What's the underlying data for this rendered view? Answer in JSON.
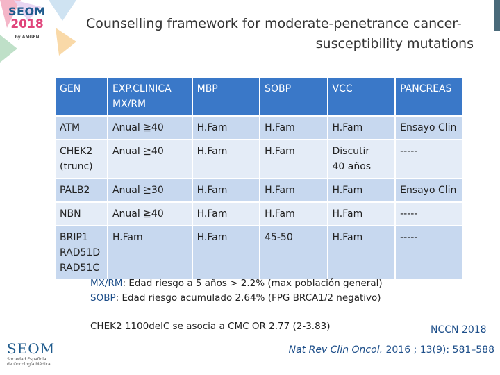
{
  "logo_top": {
    "line1": "SEOM",
    "line2": "2018",
    "line3": "by AMGEN"
  },
  "title": {
    "line1": "Counselling framework for moderate-penetrance cancer-",
    "line2": "susceptibility mutations"
  },
  "table": {
    "header": [
      "GEN",
      "EXP.CLINICA\nMX/RM",
      "MBP",
      "SOBP",
      "VCC",
      "PANCREAS"
    ],
    "rows": [
      [
        "ATM",
        "Anual ≧40",
        "H.Fam",
        "H.Fam",
        "H.Fam",
        "Ensayo Clin"
      ],
      [
        "CHEK2\n(trunc)",
        "Anual ≧40",
        "H.Fam",
        "H.Fam",
        "Discutir\n40 años",
        "-----"
      ],
      [
        "PALB2",
        "Anual ≧30",
        "H.Fam",
        "H.Fam",
        "H.Fam",
        "Ensayo Clin"
      ],
      [
        "NBN",
        "Anual ≧40",
        "H.Fam",
        "H.Fam",
        "H.Fam",
        "-----"
      ],
      [
        "BRIP1\nRAD51D\nRAD51C",
        "H.Fam",
        "H.Fam",
        "45-50",
        "H.Fam",
        "-----"
      ]
    ]
  },
  "notes": {
    "mx_key": "MX/RM",
    "mx_text": ": Edad riesgo a 5 años > 2.2% (max población general)",
    "sobp_key": "SOBP",
    "sobp_text": ": Edad riesgo acumulado 2.64% (FPG BRCA1/2 negativo)"
  },
  "chek_note": "CHEK2 1100delC se asocia a CMC OR 2.77 (2-3.83)",
  "nccn": "NCCN 2018",
  "reference": {
    "journal": "Nat Rev Clin Oncol.",
    "rest": " 2016 ; 13(9): 581–588"
  },
  "logo_bottom": {
    "name": "SEOM",
    "sub1": "Sociedad Española",
    "sub2": "de Oncología Médica"
  },
  "colors": {
    "header": "#3a78c8",
    "row_odd": "#c7d8ef",
    "row_even": "#e4ecf7",
    "accent": "#1e4f8a"
  }
}
